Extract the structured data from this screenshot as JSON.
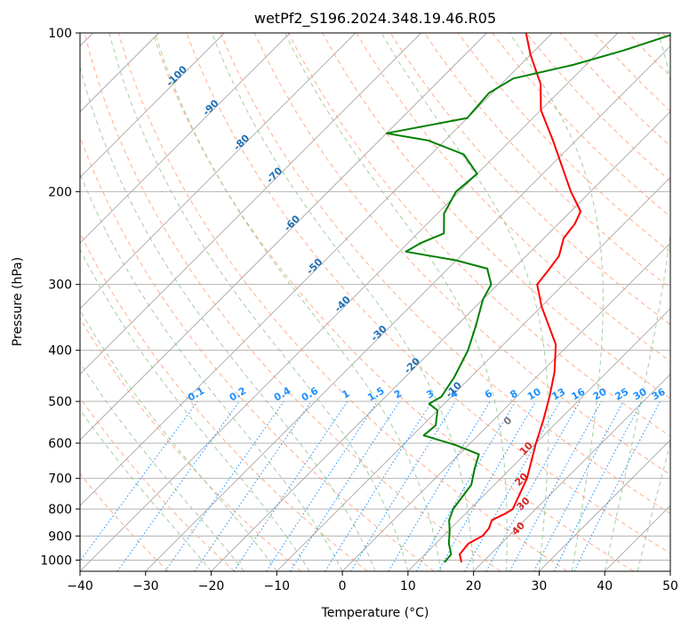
{
  "chart_data": {
    "type": "line",
    "title": "wetPf2_S196.2024.348.19.46.R05",
    "xlabel": "Temperature (°C)",
    "ylabel": "Pressure (hPa)",
    "xlim": [
      -40,
      50
    ],
    "ylim": [
      1050,
      100
    ],
    "y_scale": "log",
    "grid": true,
    "x_ticks": [
      "−40",
      "−30",
      "−20",
      "−10",
      "0",
      "10",
      "20",
      "30",
      "40",
      "50"
    ],
    "y_ticks": [
      "100",
      "200",
      "300",
      "400",
      "500",
      "600",
      "700",
      "800",
      "900",
      "1000"
    ],
    "skew_degrees": 45,
    "series": [
      {
        "color": "#ff0000",
        "points": [
          [
            16.8,
            1010
          ],
          [
            15.3,
            975
          ],
          [
            15.0,
            930
          ],
          [
            16.0,
            900
          ],
          [
            15.8,
            870
          ],
          [
            15.0,
            840
          ],
          [
            16.1,
            815
          ],
          [
            16.5,
            800
          ],
          [
            14.0,
            700
          ],
          [
            10.0,
            600
          ],
          [
            7.5,
            540
          ],
          [
            5.0,
            490
          ],
          [
            2.0,
            440
          ],
          [
            -2.0,
            390
          ],
          [
            -10.0,
            330
          ],
          [
            -14.0,
            300
          ],
          [
            -14.5,
            280
          ],
          [
            -15.0,
            265
          ],
          [
            -17.0,
            245
          ],
          [
            -17.5,
            230
          ],
          [
            -18.5,
            218
          ],
          [
            -23.0,
            200
          ],
          [
            -33.5,
            160
          ],
          [
            -40.0,
            140
          ],
          [
            -44.0,
            125
          ],
          [
            -50.0,
            110
          ],
          [
            -54.0,
            100
          ]
        ]
      },
      {
        "color": "#008000",
        "points": [
          [
            14.2,
            1010
          ],
          [
            14.0,
            975
          ],
          [
            12.0,
            930
          ],
          [
            10.2,
            880
          ],
          [
            8.5,
            840
          ],
          [
            7.4,
            800
          ],
          [
            6.5,
            720
          ],
          [
            4.5,
            670
          ],
          [
            3.0,
            630
          ],
          [
            -2.0,
            605
          ],
          [
            -8.3,
            580
          ],
          [
            -8.0,
            555
          ],
          [
            -10.0,
            520
          ],
          [
            -12.3,
            505
          ],
          [
            -11.5,
            490
          ],
          [
            -12.5,
            450
          ],
          [
            -14.5,
            400
          ],
          [
            -17.0,
            360
          ],
          [
            -20.0,
            320
          ],
          [
            -21.0,
            300
          ],
          [
            -24.0,
            280
          ],
          [
            -30.0,
            270
          ],
          [
            -39.0,
            260
          ],
          [
            -38.0,
            250
          ],
          [
            -36.0,
            240
          ],
          [
            -39.0,
            220
          ],
          [
            -40.5,
            200
          ],
          [
            -40.0,
            185
          ],
          [
            -45.0,
            170
          ],
          [
            -52.5,
            160
          ],
          [
            -60.0,
            155
          ],
          [
            -50.0,
            145
          ],
          [
            -50.5,
            130
          ],
          [
            -49.0,
            122
          ],
          [
            -42.0,
            115
          ],
          [
            -36.5,
            108
          ],
          [
            -31.0,
            100
          ]
        ]
      }
    ],
    "dry_adiabat_labels": [
      "-100",
      "-90",
      "-80",
      "-70",
      "-60",
      "-50",
      "-40",
      "-30",
      "-20",
      "-10"
    ],
    "moist_adiabat_labels": [
      "0",
      "10",
      "20",
      "30",
      "40"
    ],
    "mixing_ratio_labels": [
      "0.1",
      "0.2",
      "0.4",
      "0.6",
      "1",
      "1.5",
      "2",
      "3",
      "4",
      "6",
      "8",
      "10",
      "13",
      "16",
      "20",
      "25",
      "30",
      "36"
    ],
    "colors": {
      "temperature": "#ff0000",
      "dewpoint": "#008000",
      "isotherm": "#808080",
      "dry_adiabat": "#ffa07a",
      "moist_adiabat": "#90c890",
      "mixing_ratio": "#1e90ff",
      "dry_label": "#1f6fb4",
      "moist_label": "#d62728",
      "mixing_label": "#1e90ff",
      "zero_label": "#777777"
    }
  }
}
